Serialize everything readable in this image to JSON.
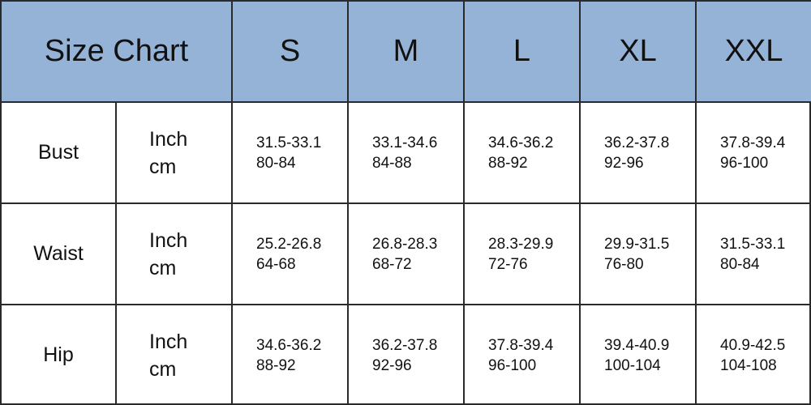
{
  "header": {
    "title": "Size Chart",
    "sizes": [
      "S",
      "M",
      "L",
      "XL",
      "XXL"
    ]
  },
  "rows": [
    {
      "name": "Bust",
      "units": [
        "Inch",
        "cm"
      ],
      "cells": [
        [
          "31.5-33.1",
          "80-84"
        ],
        [
          "33.1-34.6",
          "84-88"
        ],
        [
          "34.6-36.2",
          "88-92"
        ],
        [
          "36.2-37.8",
          "92-96"
        ],
        [
          "37.8-39.4",
          "96-100"
        ]
      ]
    },
    {
      "name": "Waist",
      "units": [
        "Inch",
        "cm"
      ],
      "cells": [
        [
          "25.2-26.8",
          "64-68"
        ],
        [
          "26.8-28.3",
          "68-72"
        ],
        [
          "28.3-29.9",
          "72-76"
        ],
        [
          "29.9-31.5",
          "76-80"
        ],
        [
          "31.5-33.1",
          "80-84"
        ]
      ]
    },
    {
      "name": "Hip",
      "units": [
        "Inch",
        "cm"
      ],
      "cells": [
        [
          "34.6-36.2",
          "88-92"
        ],
        [
          "36.2-37.8",
          "92-96"
        ],
        [
          "37.8-39.4",
          "96-100"
        ],
        [
          "39.4-40.9",
          "100-104"
        ],
        [
          "40.9-42.5",
          "104-108"
        ]
      ]
    }
  ]
}
